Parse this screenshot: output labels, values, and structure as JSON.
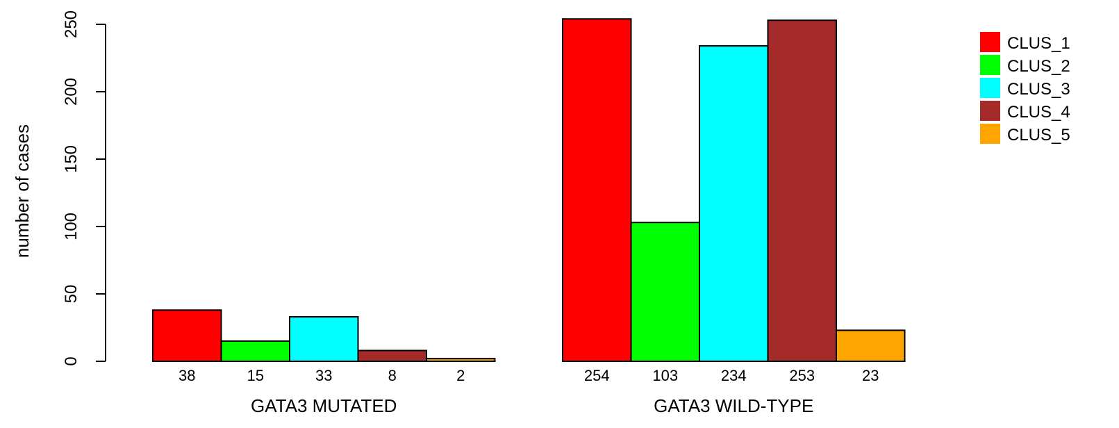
{
  "chart_data": {
    "type": "bar",
    "ylabel": "number of cases",
    "ylim": [
      0,
      250
    ],
    "yticks": [
      0,
      50,
      100,
      150,
      200,
      250
    ],
    "groups": [
      {
        "label": "GATA3 MUTATED",
        "values": [
          38,
          15,
          33,
          8,
          2
        ]
      },
      {
        "label": "GATA3 WILD-TYPE",
        "values": [
          254,
          103,
          234,
          253,
          23
        ]
      }
    ],
    "series": [
      {
        "name": "CLUS_1",
        "color": "#ff0000"
      },
      {
        "name": "CLUS_2",
        "color": "#00ff00"
      },
      {
        "name": "CLUS_3",
        "color": "#00ffff"
      },
      {
        "name": "CLUS_4",
        "color": "#a52a2a"
      },
      {
        "name": "CLUS_5",
        "color": "#ffa500"
      }
    ],
    "legend": "top-right",
    "grid": false
  }
}
